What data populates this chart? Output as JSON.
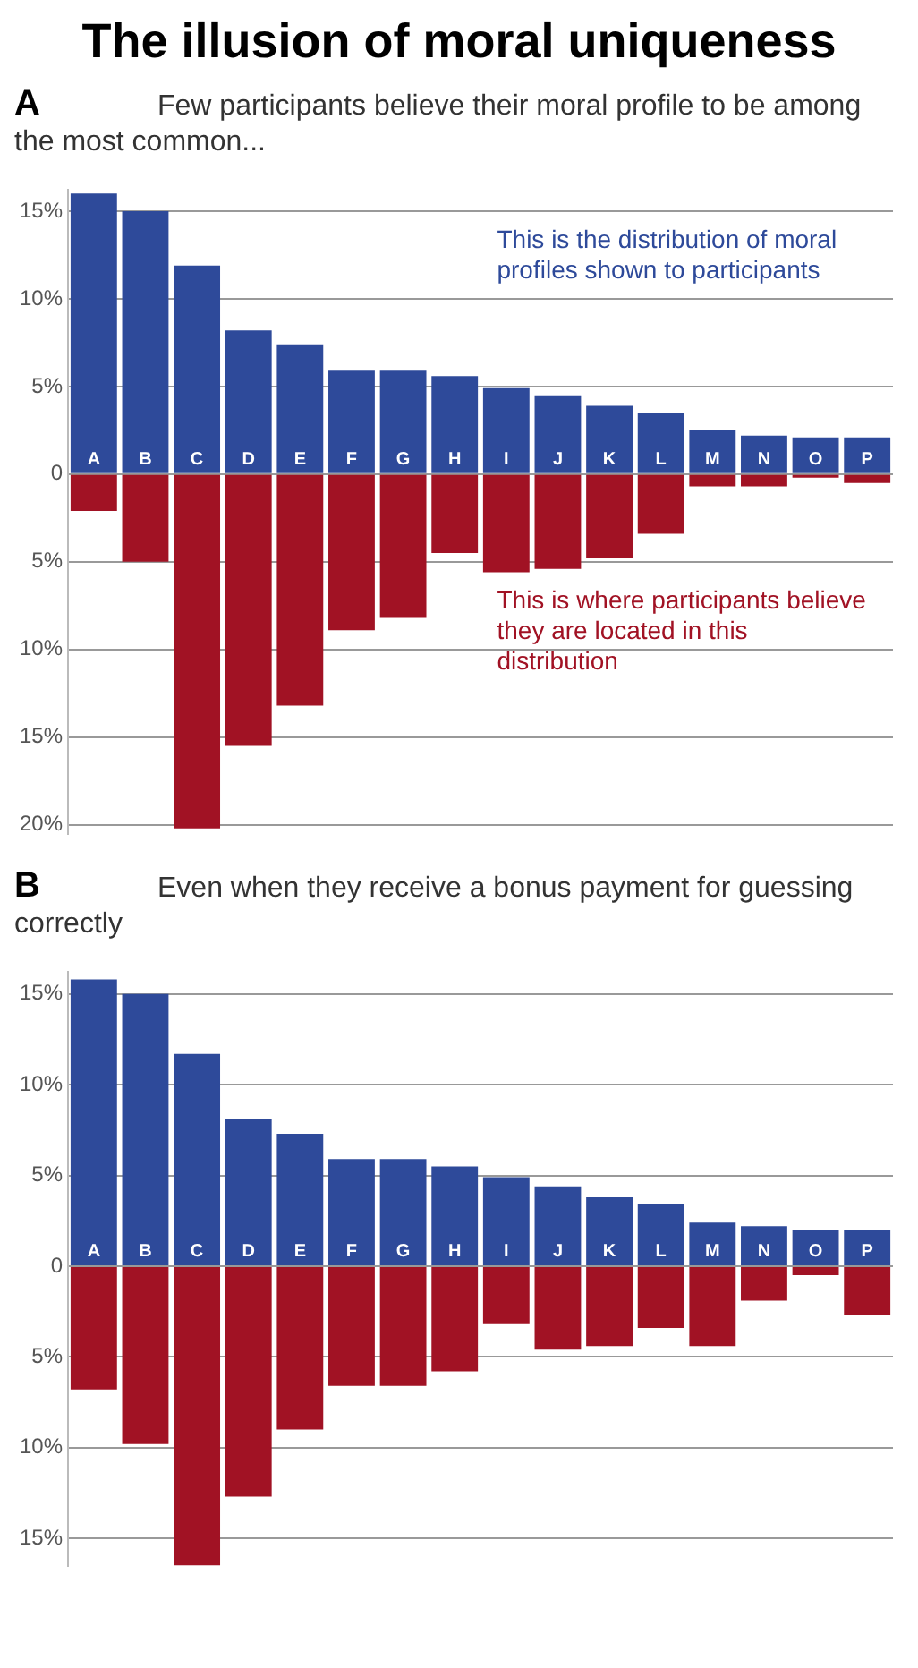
{
  "chart_data": [
    {
      "type": "bar",
      "title": "A",
      "subtitle": "Few participants believe their moral profile to be among the most common...",
      "categories": [
        "A",
        "B",
        "C",
        "D",
        "E",
        "F",
        "G",
        "H",
        "I",
        "J",
        "K",
        "L",
        "M",
        "N",
        "O",
        "P"
      ],
      "series": [
        {
          "color": "#2e4a9a",
          "values": [
            16.0,
            15.0,
            11.9,
            8.2,
            7.4,
            5.9,
            5.9,
            5.6,
            4.9,
            4.5,
            3.9,
            3.5,
            2.5,
            2.2,
            2.1,
            2.1
          ]
        },
        {
          "color": "#a11224",
          "values": [
            -2.1,
            -5.0,
            -20.2,
            -15.5,
            -13.2,
            -8.9,
            -8.2,
            -4.5,
            -5.6,
            -5.4,
            -4.8,
            -3.4,
            -0.7,
            -0.7,
            -0.2,
            -0.5
          ]
        }
      ],
      "ylim": [
        -20.5,
        16.2
      ],
      "yticks": [
        {
          "value": 15,
          "label": "15%"
        },
        {
          "value": 10,
          "label": "10%"
        },
        {
          "value": 5,
          "label": "5%"
        },
        0,
        {
          "value": -5,
          "label": "5%"
        },
        {
          "value": -10,
          "label": "10%"
        },
        {
          "value": -15,
          "label": "15%"
        },
        {
          "value": -20,
          "label": "20%"
        }
      ],
      "grid": "y",
      "stacked": true,
      "annotations": [
        "The illusion of moral uniqueness",
        "This is the distribution of moral profiles shown to participants",
        "This is where participants believe they are located in this distribution"
      ]
    },
    {
      "type": "bar",
      "title": "B",
      "subtitle": "Even when they receive a bonus payment for guessing correctly",
      "categories": [
        "A",
        "B",
        "C",
        "D",
        "E",
        "F",
        "G",
        "H",
        "I",
        "J",
        "K",
        "L",
        "M",
        "N",
        "O",
        "P"
      ],
      "series": [
        {
          "color": "#2e4a9a",
          "values": [
            15.8,
            15.0,
            11.7,
            8.1,
            7.3,
            5.9,
            5.9,
            5.5,
            4.9,
            4.4,
            3.8,
            3.4,
            2.4,
            2.2,
            2.0,
            2.0
          ]
        },
        {
          "color": "#a11224",
          "values": [
            -6.8,
            -9.8,
            -16.5,
            -12.7,
            -9.0,
            -6.6,
            -6.6,
            -5.8,
            -3.2,
            -4.6,
            -4.4,
            -3.4,
            -4.4,
            -1.9,
            -0.5,
            -2.7
          ]
        }
      ],
      "ylim": [
        -16.5,
        16.2
      ],
      "yticks": [
        {
          "value": 15,
          "label": "15%"
        },
        {
          "value": 10,
          "label": "10%"
        },
        {
          "value": 5,
          "label": "5%"
        },
        0,
        {
          "value": -5,
          "label": "5%"
        },
        {
          "value": -10,
          "label": "10%"
        },
        {
          "value": -15,
          "label": "15%"
        }
      ],
      "grid": "y",
      "stacked": true
    }
  ]
}
